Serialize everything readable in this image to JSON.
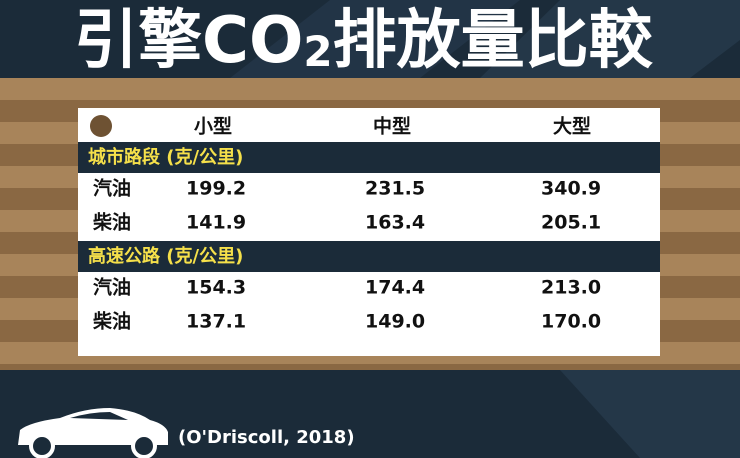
{
  "header": {
    "title": [
      "引擎CO",
      "2",
      "排放量比較"
    ]
  },
  "table": {
    "columns": [
      "小型",
      "中型",
      "大型"
    ],
    "sections": [
      {
        "label": "城市路段 (克/公里)",
        "rows": [
          [
            "汽油",
            "199.2",
            "231.5",
            "340.9"
          ],
          [
            "柴油",
            "141.9",
            "163.4",
            "205.1"
          ]
        ]
      },
      {
        "label": "高速公路 (克/公里)",
        "rows": [
          [
            "汽油",
            "154.3",
            "174.4",
            "213.0"
          ],
          [
            "柴油",
            "137.1",
            "149.0",
            "170.0"
          ]
        ]
      }
    ]
  },
  "footer": {
    "citation": "(O'Driscoll, 2018)"
  }
}
